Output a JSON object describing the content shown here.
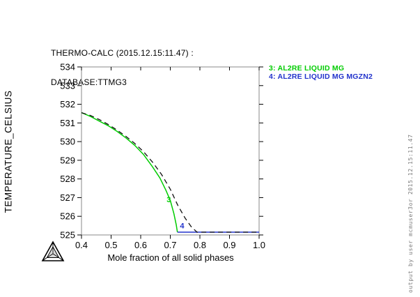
{
  "header": {
    "line1": "THERMO-CALC (2015.12.15:11.47) :",
    "line2": "DATABASE:TTMG3"
  },
  "legend": {
    "items": [
      {
        "label": "3: AL2RE LIQUID MG",
        "color": "#00cc00"
      },
      {
        "label": "4: AL2RE LIQUID MG MGZN2",
        "color": "#2233cc"
      }
    ]
  },
  "footer": {
    "vertical_note": "output by user mcmuser3or 2015.12.15:11.47"
  },
  "logo": {
    "name": "thermo-calc-tetrahedron-logo"
  },
  "chart_data": {
    "type": "line",
    "title": "",
    "xlabel": "Mole fraction of all solid phases",
    "ylabel": "TEMPERATURE_CELSIUS",
    "xlim": [
      0.4,
      1.0
    ],
    "ylim": [
      525,
      534
    ],
    "grid": false,
    "legend_position": "outside-top-right",
    "x_ticks": [
      0.4,
      0.5,
      0.6,
      0.7,
      0.8,
      0.9,
      1.0
    ],
    "x_tick_labels": [
      "0.4",
      "0.5",
      "0.6",
      "0.7",
      "0.8",
      "0.9",
      "1.0"
    ],
    "y_ticks": [
      525,
      526,
      527,
      528,
      529,
      530,
      531,
      532,
      533,
      534
    ],
    "y_tick_labels": [
      "525",
      "526",
      "527",
      "528",
      "529",
      "530",
      "531",
      "532",
      "533",
      "534"
    ],
    "frame_color": "#888888",
    "tick_color": "#000000",
    "series": [
      {
        "name": "3: AL2RE LIQUID MG",
        "color": "#00cc00",
        "style": "solid",
        "inline_label": {
          "text": "3",
          "x": 0.683,
          "y": 526.75
        },
        "points": [
          [
            0.4,
            531.55
          ],
          [
            0.43,
            531.35
          ],
          [
            0.46,
            531.1
          ],
          [
            0.49,
            530.85
          ],
          [
            0.52,
            530.55
          ],
          [
            0.55,
            530.2
          ],
          [
            0.58,
            529.8
          ],
          [
            0.61,
            529.3
          ],
          [
            0.64,
            528.65
          ],
          [
            0.665,
            528.05
          ],
          [
            0.685,
            527.4
          ],
          [
            0.7,
            526.85
          ],
          [
            0.712,
            526.15
          ],
          [
            0.72,
            525.55
          ],
          [
            0.724,
            525.15
          ]
        ]
      },
      {
        "name": "4: AL2RE LIQUID MG MGZN2",
        "color": "#2233cc",
        "style": "solid",
        "inline_label": {
          "text": "4",
          "x": 0.728,
          "y": 525.35
        },
        "points": [
          [
            0.724,
            525.15
          ],
          [
            1.0,
            525.15
          ]
        ]
      },
      {
        "name": "phase-boundary-dashed",
        "color": "#111111",
        "style": "dashed",
        "inline_label": null,
        "points": [
          [
            0.4,
            531.55
          ],
          [
            0.43,
            531.4
          ],
          [
            0.46,
            531.18
          ],
          [
            0.49,
            530.92
          ],
          [
            0.52,
            530.62
          ],
          [
            0.55,
            530.28
          ],
          [
            0.58,
            529.9
          ],
          [
            0.61,
            529.45
          ],
          [
            0.64,
            528.9
          ],
          [
            0.67,
            528.25
          ],
          [
            0.7,
            527.45
          ],
          [
            0.725,
            526.6
          ],
          [
            0.75,
            525.9
          ],
          [
            0.77,
            525.45
          ],
          [
            0.79,
            525.15
          ],
          [
            1.0,
            525.15
          ]
        ]
      }
    ]
  }
}
